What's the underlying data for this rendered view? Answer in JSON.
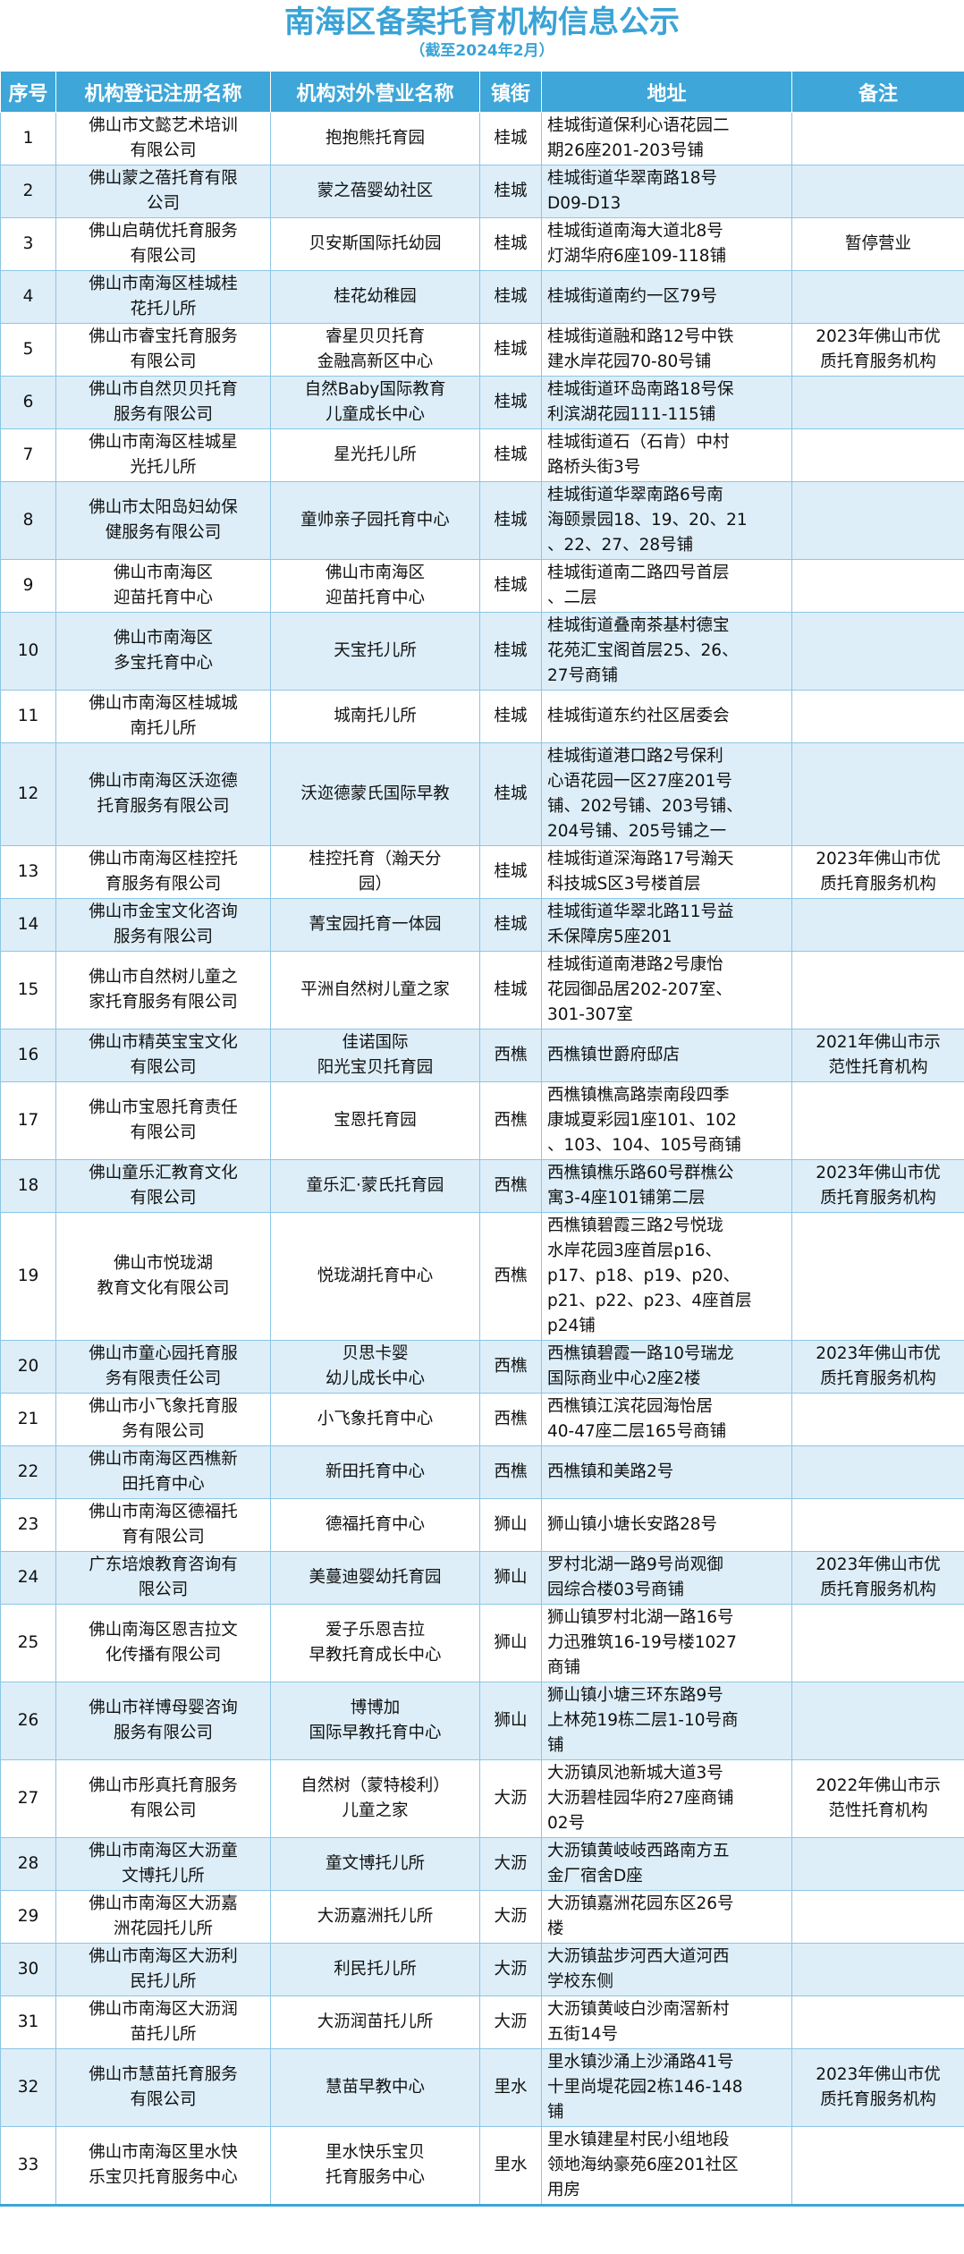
{
  "title": "南海区备案托育机构信息公示",
  "subtitle": "（截至2024年2月）",
  "colors": {
    "accent": "#3ea6d8",
    "row_alt": "#ddeef8"
  },
  "columns": [
    "序号",
    "机构登记注册名称",
    "机构对外营业名称",
    "镇街",
    "地址",
    "备注"
  ],
  "rows": [
    [
      "1",
      "佛山市文懿艺术培训\n有限公司",
      "抱抱熊托育园",
      "桂城",
      "桂城街道保利心语花园二\n期26座201-203号铺",
      ""
    ],
    [
      "2",
      "佛山蒙之蓓托育有限\n公司",
      "蒙之蓓婴幼社区",
      "桂城",
      "桂城街道华翠南路18号\nD09-D13",
      ""
    ],
    [
      "3",
      "佛山启萌优托育服务\n有限公司",
      "贝安斯国际托幼园",
      "桂城",
      "桂城街道南海大道北8号\n灯湖华府6座109-118铺",
      "暂停营业"
    ],
    [
      "4",
      "佛山市南海区桂城桂\n花托儿所",
      "桂花幼稚园",
      "桂城",
      "桂城街道南约一区79号",
      ""
    ],
    [
      "5",
      "佛山市睿宝托育服务\n有限公司",
      "睿星贝贝托育\n金融高新区中心",
      "桂城",
      "桂城街道融和路12号中铁\n建水岸花园70-80号铺",
      "2023年佛山市优\n质托育服务机构"
    ],
    [
      "6",
      "佛山市自然贝贝托育\n服务有限公司",
      "自然Baby国际教育\n儿童成长中心",
      "桂城",
      "桂城街道环岛南路18号保\n利滨湖花园111-115铺",
      ""
    ],
    [
      "7",
      "佛山市南海区桂城星\n光托儿所",
      "星光托儿所",
      "桂城",
      "桂城街道石（石肯）中村\n路桥头街3号",
      ""
    ],
    [
      "8",
      "佛山市太阳岛妇幼保\n健服务有限公司",
      "童帅亲子园托育中心",
      "桂城",
      "桂城街道华翠南路6号南\n海颐景园18、19、20、21\n、22、27、28号铺",
      ""
    ],
    [
      "9",
      "佛山市南海区\n迎苗托育中心",
      "佛山市南海区\n迎苗托育中心",
      "桂城",
      "桂城街道南二路四号首层\n、二层",
      ""
    ],
    [
      "10",
      "佛山市南海区\n多宝托育中心",
      "天宝托儿所",
      "桂城",
      "桂城街道叠南茶基村德宝\n花苑汇宝阁首层25、26、\n27号商铺",
      ""
    ],
    [
      "11",
      "佛山市南海区桂城城\n南托儿所",
      "城南托儿所",
      "桂城",
      "桂城街道东约社区居委会",
      ""
    ],
    [
      "12",
      "佛山市南海区沃迩德\n托育服务有限公司",
      "沃迩德蒙氏国际早教",
      "桂城",
      "桂城街道港口路2号保利\n心语花园一区27座201号\n铺、202号铺、203号铺、\n204号铺、205号铺之一",
      ""
    ],
    [
      "13",
      "佛山市南海区桂控托\n育服务有限公司",
      "桂控托育（瀚天分\n园）",
      "桂城",
      "桂城街道深海路17号瀚天\n科技城S区3号楼首层",
      "2023年佛山市优\n质托育服务机构"
    ],
    [
      "14",
      "佛山市金宝文化咨询\n服务有限公司",
      "菁宝园托育一体园",
      "桂城",
      "桂城街道华翠北路11号益\n禾保障房5座201",
      ""
    ],
    [
      "15",
      "佛山市自然树儿童之\n家托育服务有限公司",
      "平洲自然树儿童之家",
      "桂城",
      "桂城街道南港路2号康怡\n花园御品居202-207室、\n301-307室",
      ""
    ],
    [
      "16",
      "佛山市精英宝宝文化\n有限公司",
      "佳诺国际\n阳光宝贝托育园",
      "西樵",
      "西樵镇世爵府邸店",
      "2021年佛山市示\n范性托育机构"
    ],
    [
      "17",
      "佛山市宝恩托育责任\n有限公司",
      "宝恩托育园",
      "西樵",
      "西樵镇樵高路崇南段四季\n康城夏彩园1座101、102\n、103、104、105号商铺",
      ""
    ],
    [
      "18",
      "佛山童乐汇教育文化\n有限公司",
      "童乐汇·蒙氏托育园",
      "西樵",
      "西樵镇樵乐路60号群樵公\n寓3-4座101铺第二层",
      "2023年佛山市优\n质托育服务机构"
    ],
    [
      "19",
      "佛山市悦珑湖\n教育文化有限公司",
      "悦珑湖托育中心",
      "西樵",
      "西樵镇碧霞三路2号悦珑\n水岸花园3座首层p16、\np17、p18、p19、p20、\np21、p22、p23、4座首层\np24铺",
      ""
    ],
    [
      "20",
      "佛山市童心园托育服\n务有限责任公司",
      "贝思卡婴\n幼儿成长中心",
      "西樵",
      "西樵镇碧霞一路10号瑞龙\n国际商业中心2座2楼",
      "2023年佛山市优\n质托育服务机构"
    ],
    [
      "21",
      "佛山市小飞象托育服\n务有限公司",
      "小飞象托育中心",
      "西樵",
      "西樵镇江滨花园海怡居\n40-47座二层165号商铺",
      ""
    ],
    [
      "22",
      "佛山市南海区西樵新\n田托育中心",
      "新田托育中心",
      "西樵",
      "西樵镇和美路2号",
      ""
    ],
    [
      "23",
      "佛山市南海区德福托\n育有限公司",
      "德福托育中心",
      "狮山",
      "狮山镇小塘长安路28号",
      ""
    ],
    [
      "24",
      "广东培烺教育咨询有\n限公司",
      "美蔓迪婴幼托育园",
      "狮山",
      "罗村北湖一路9号尚观御\n园综合楼03号商铺",
      "2023年佛山市优\n质托育服务机构"
    ],
    [
      "25",
      "佛山南海区恩吉拉文\n化传播有限公司",
      "爱子乐恩吉拉\n早教托育成长中心",
      "狮山",
      "狮山镇罗村北湖一路16号\n力迅雅筑16-19号楼1027\n商铺",
      ""
    ],
    [
      "26",
      "佛山市祥博母婴咨询\n服务有限公司",
      "博博加\n国际早教托育中心",
      "狮山",
      "狮山镇小塘三环东路9号\n上林苑19栋二层1-10号商\n铺",
      ""
    ],
    [
      "27",
      "佛山市彤真托育服务\n有限公司",
      "自然树（蒙特梭利）\n儿童之家",
      "大沥",
      "大沥镇凤池新城大道3号\n大沥碧桂园华府27座商铺\n02号",
      "2022年佛山市示\n范性托育机构"
    ],
    [
      "28",
      "佛山市南海区大沥童\n文博托儿所",
      "童文博托儿所",
      "大沥",
      "大沥镇黄岐岐西路南方五\n金厂宿舍D座",
      ""
    ],
    [
      "29",
      "佛山市南海区大沥嘉\n洲花园托儿所",
      "大沥嘉洲托儿所",
      "大沥",
      "大沥镇嘉洲花园东区26号\n楼",
      ""
    ],
    [
      "30",
      "佛山市南海区大沥利\n民托儿所",
      "利民托儿所",
      "大沥",
      "大沥镇盐步河西大道河西\n学校东侧",
      ""
    ],
    [
      "31",
      "佛山市南海区大沥润\n苗托儿所",
      "大沥润苗托儿所",
      "大沥",
      "大沥镇黄岐白沙南滘新村\n五街14号",
      ""
    ],
    [
      "32",
      "佛山市慧苗托育服务\n有限公司",
      "慧苗早教中心",
      "里水",
      "里水镇沙涌上沙涌路41号\n十里尚堤花园2栋146-148\n铺",
      "2023年佛山市优\n质托育服务机构"
    ],
    [
      "33",
      "佛山市南海区里水快\n乐宝贝托育服务中心",
      "里水快乐宝贝\n托育服务中心",
      "里水",
      "里水镇建星村民小组地段\n领地海纳豪苑6座201社区\n用房",
      ""
    ]
  ]
}
